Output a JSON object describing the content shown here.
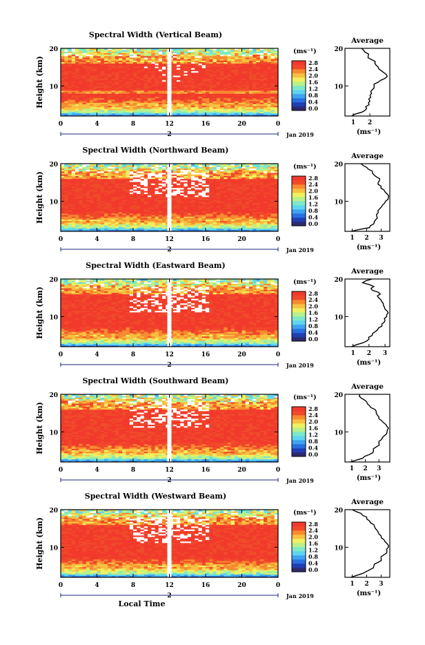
{
  "figure": {
    "xlabel": "Local Time",
    "ylabel": "Height (km)",
    "date_label": "Jan 2019",
    "day_label": "2",
    "colorbar_unit": "(ms⁻¹)",
    "colorbar_ticks": [
      "0.0",
      "0.4",
      "0.8",
      "1.2",
      "1.6",
      "2.0",
      "2.4",
      "2.8"
    ],
    "profile_title": "Average",
    "profile_xlabel": "(ms⁻¹)",
    "x_ticks": [
      "0",
      "4",
      "8",
      "12",
      "16",
      "20",
      "0"
    ],
    "y_ticks": [
      "10",
      "20"
    ]
  },
  "colors": {
    "scale": [
      "#2e2a6e",
      "#1f3fb4",
      "#2a6fe0",
      "#3fa3f0",
      "#5fd4f0",
      "#7ee8c8",
      "#b8f08a",
      "#f0f060",
      "#f8c040",
      "#f88a30",
      "#f04a2a",
      "#f23a2c"
    ]
  },
  "chart_data": [
    {
      "type": "heatmap",
      "title": "Spectral Width (Vertical Beam)",
      "x_range": [
        0,
        24
      ],
      "y_range": [
        2,
        20
      ],
      "colorbar_range": [
        0.0,
        2.8
      ],
      "gap_hour": 12,
      "profile": {
        "title": "Average",
        "xlim": [
          0.5,
          3.2
        ],
        "xticks": [
          "1",
          "2"
        ],
        "heights": [
          2.0,
          3.0,
          4.0,
          5.0,
          6.0,
          7.0,
          8.0,
          9.0,
          10.0,
          11.0,
          12.0,
          13.0,
          14.0,
          15.0,
          16.0,
          17.0,
          18.0,
          19.0,
          20.0
        ],
        "values": [
          0.9,
          1.5,
          1.8,
          1.95,
          2.0,
          2.05,
          2.1,
          2.15,
          2.25,
          2.5,
          2.9,
          3.0,
          2.7,
          2.5,
          2.3,
          2.1,
          1.9,
          1.7,
          1.5
        ]
      }
    },
    {
      "type": "heatmap",
      "title": "Spectral Width (Northward Beam)",
      "x_range": [
        0,
        24
      ],
      "y_range": [
        2,
        20
      ],
      "colorbar_range": [
        0.0,
        2.8
      ],
      "gap_hour": 12,
      "profile": {
        "title": "Average",
        "xlim": [
          0.5,
          3.6
        ],
        "xticks": [
          "1",
          "2",
          "3"
        ],
        "heights": [
          2.0,
          3.0,
          4.0,
          5.0,
          6.0,
          7.0,
          8.0,
          9.0,
          10.0,
          11.0,
          12.0,
          13.0,
          14.0,
          15.0,
          16.0,
          17.0,
          18.0,
          19.0,
          20.0
        ],
        "values": [
          0.9,
          2.2,
          2.5,
          2.6,
          2.7,
          2.8,
          2.9,
          3.1,
          3.3,
          3.5,
          3.4,
          3.2,
          3.0,
          2.8,
          2.9,
          2.5,
          2.4,
          2.0,
          1.6
        ]
      }
    },
    {
      "type": "heatmap",
      "title": "Spectral Width (Eastward Beam)",
      "x_range": [
        0,
        24
      ],
      "y_range": [
        2,
        20
      ],
      "colorbar_range": [
        0.0,
        2.8
      ],
      "gap_hour": 12,
      "profile": {
        "title": "Average",
        "xlim": [
          0.5,
          3.3
        ],
        "xticks": [
          "1",
          "2",
          "3"
        ],
        "heights": [
          2.0,
          3.0,
          4.0,
          5.0,
          6.0,
          7.0,
          8.0,
          9.0,
          10.0,
          11.0,
          12.0,
          13.0,
          14.0,
          15.0,
          16.0,
          17.0,
          18.0,
          19.0,
          20.0
        ],
        "values": [
          0.9,
          1.6,
          2.0,
          2.2,
          2.4,
          2.6,
          2.8,
          3.0,
          3.1,
          3.2,
          3.0,
          2.9,
          2.8,
          2.6,
          2.7,
          2.2,
          2.3,
          1.6,
          2.2
        ]
      }
    },
    {
      "type": "heatmap",
      "title": "Spectral Width (Southward Beam)",
      "x_range": [
        0,
        24
      ],
      "y_range": [
        2,
        20
      ],
      "colorbar_range": [
        0.0,
        2.8
      ],
      "gap_hour": 12,
      "profile": {
        "title": "Average",
        "xlim": [
          0.5,
          3.8
        ],
        "xticks": [
          "1",
          "2",
          "3"
        ],
        "heights": [
          2.0,
          3.0,
          4.0,
          5.0,
          6.0,
          7.0,
          8.0,
          9.0,
          10.0,
          11.0,
          12.0,
          13.0,
          14.0,
          15.0,
          16.0,
          17.0,
          18.0,
          19.0,
          20.0
        ],
        "values": [
          0.9,
          1.8,
          2.3,
          2.6,
          2.8,
          3.0,
          3.2,
          3.4,
          3.6,
          3.7,
          3.5,
          3.2,
          3.0,
          2.8,
          2.7,
          2.3,
          2.1,
          1.7,
          1.6
        ]
      }
    },
    {
      "type": "heatmap",
      "title": "Spectral Width (Westward Beam)",
      "x_range": [
        0,
        24
      ],
      "y_range": [
        2,
        20
      ],
      "colorbar_range": [
        0.0,
        2.8
      ],
      "gap_hour": 12,
      "profile": {
        "title": "Average",
        "xlim": [
          0.5,
          3.6
        ],
        "xticks": [
          "1",
          "2",
          "3"
        ],
        "heights": [
          2.0,
          3.0,
          4.0,
          5.0,
          6.0,
          7.0,
          8.0,
          9.0,
          10.0,
          11.0,
          12.0,
          13.0,
          14.0,
          15.0,
          16.0,
          17.0,
          18.0,
          19.0,
          20.0
        ],
        "values": [
          0.9,
          1.7,
          2.2,
          2.5,
          2.8,
          3.0,
          3.2,
          3.4,
          3.5,
          3.4,
          3.2,
          3.0,
          2.8,
          2.6,
          2.5,
          2.2,
          2.0,
          1.6,
          1.0
        ]
      }
    }
  ]
}
